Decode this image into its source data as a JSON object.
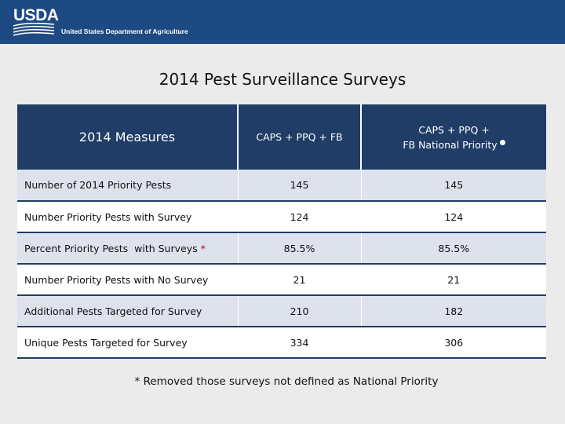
{
  "header": {
    "logo_text": "USDA",
    "agency_name": "United States Department of Agriculture"
  },
  "title": "2014 Pest Surveillance Surveys",
  "table": {
    "columns": [
      {
        "label": "2014 Measures"
      },
      {
        "label": "CAPS + PPQ + FB"
      },
      {
        "line1": "CAPS + PPQ +",
        "line2": "FB National Priority"
      }
    ],
    "rows": [
      {
        "label": "Number of 2014 Priority Pests",
        "marker": "",
        "col1": "145",
        "col2": "145"
      },
      {
        "label": "Number Priority Pests with Survey",
        "marker": "",
        "col1": "124",
        "col2": "124"
      },
      {
        "label": "Percent Priority Pests  with Surveys ",
        "marker": "*",
        "col1": "85.5%",
        "col2": "85.5%"
      },
      {
        "label": "Number Priority Pests with No Survey",
        "marker": "",
        "col1": "21",
        "col2": "21"
      },
      {
        "label": "Additional Pests Targeted for Survey",
        "marker": "",
        "col1": "210",
        "col2": "182"
      },
      {
        "label": "Unique Pests Targeted for Survey",
        "marker": "",
        "col1": "334",
        "col2": "306"
      }
    ]
  },
  "footnote": "* Removed those surveys not defined as National Priority",
  "colors": {
    "banner": "#1e4a83",
    "table_header": "#1f3d66",
    "row_alt": "#dde2ec",
    "marker": "#c00000"
  }
}
